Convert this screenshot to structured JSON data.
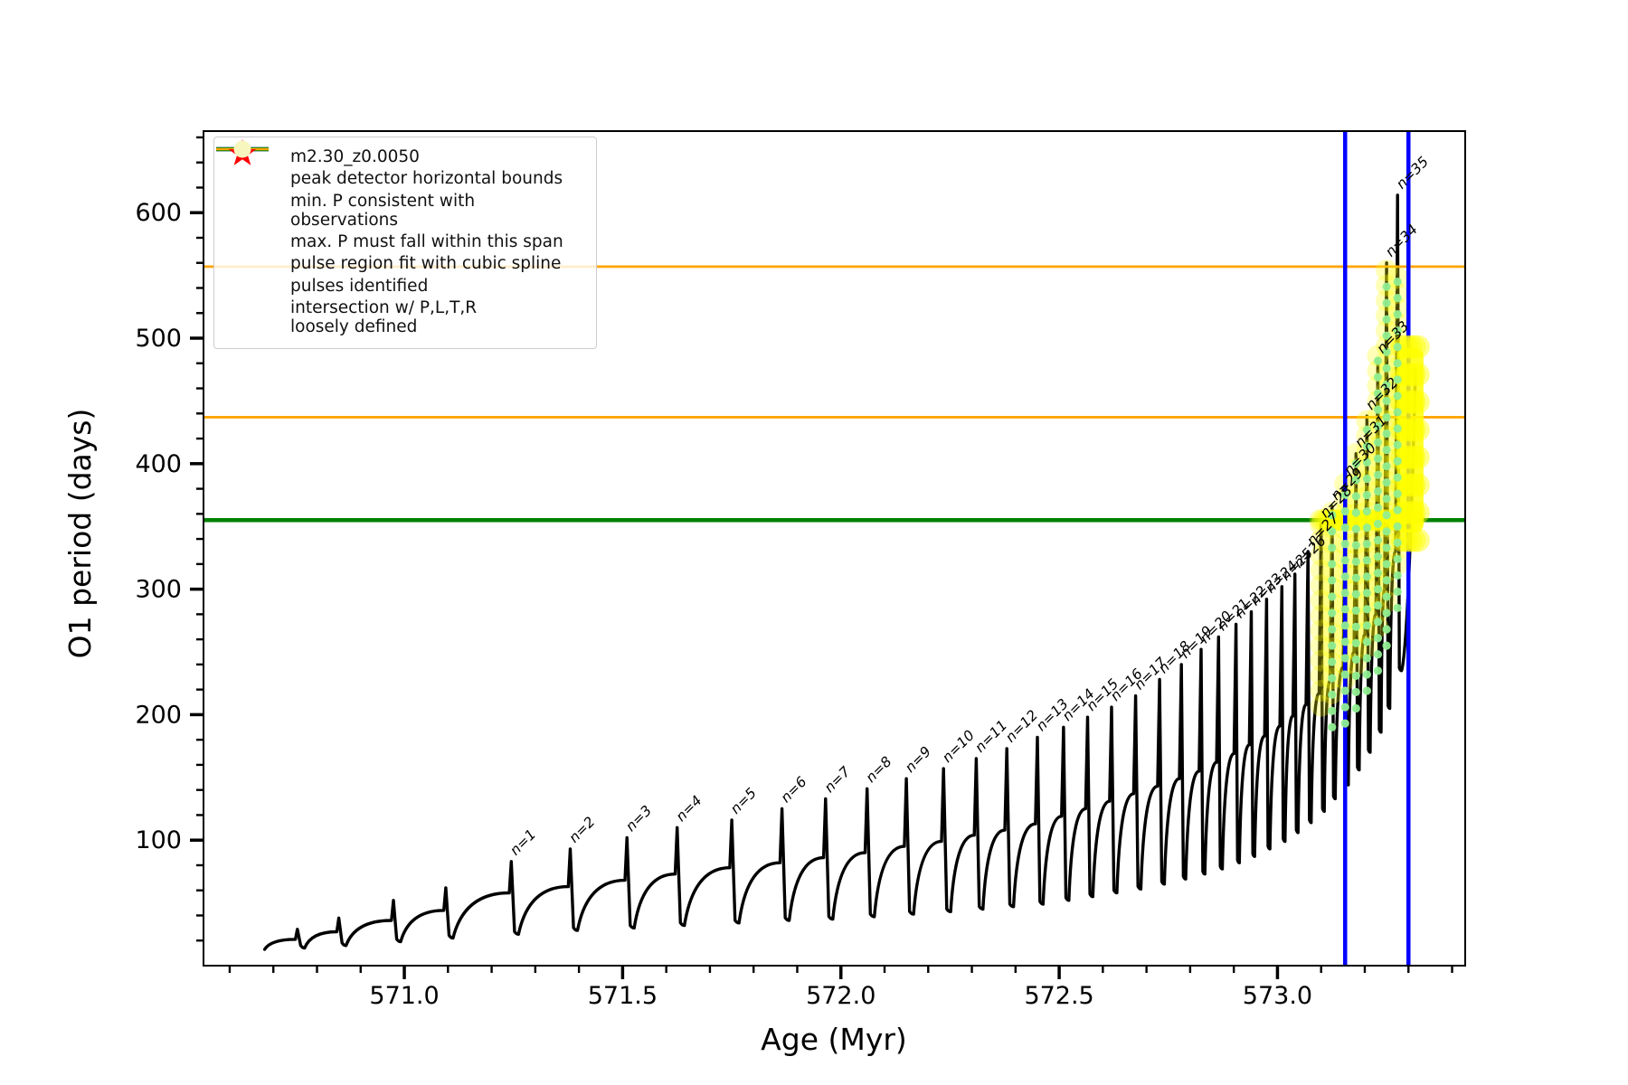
{
  "chart_data": {
    "type": "line",
    "title": "",
    "xlabel": "Age (Myr)",
    "ylabel": "O1 period (days)",
    "xlim": [
      570.54,
      573.43
    ],
    "ylim": [
      0,
      665
    ],
    "x_major_ticks": [
      571.0,
      571.5,
      572.0,
      572.5,
      573.0
    ],
    "x_tick_labels": [
      "571.0",
      "571.5",
      "572.0",
      "572.5",
      "573.0"
    ],
    "x_minor_step": 0.1,
    "y_major_ticks": [
      100,
      200,
      300,
      400,
      500,
      600
    ],
    "y_tick_labels": [
      "100",
      "200",
      "300",
      "400",
      "500",
      "600"
    ],
    "y_minor_step": 20,
    "grid": false,
    "series_name": "m2.30_z0.0050",
    "curve_start": {
      "age": 570.68,
      "period": 13
    },
    "curve_tail": {
      "age": 573.316,
      "period": 475
    },
    "pulses": [
      {
        "label": null,
        "age": 570.755,
        "peak": 29,
        "shoulder": 21,
        "min_after": 14
      },
      {
        "label": null,
        "age": 570.85,
        "peak": 38,
        "shoulder": 27,
        "min_after": 16
      },
      {
        "label": null,
        "age": 570.975,
        "peak": 52,
        "shoulder": 36,
        "min_after": 19
      },
      {
        "label": null,
        "age": 571.095,
        "peak": 62,
        "shoulder": 44,
        "min_after": 22
      },
      {
        "label": "n=1",
        "age": 571.245,
        "peak": 83,
        "shoulder": 58,
        "min_after": 25
      },
      {
        "label": "n=2",
        "age": 571.38,
        "peak": 93,
        "shoulder": 63,
        "min_after": 28
      },
      {
        "label": "n=3",
        "age": 571.51,
        "peak": 102,
        "shoulder": 68,
        "min_after": 30
      },
      {
        "label": "n=4",
        "age": 571.625,
        "peak": 110,
        "shoulder": 73,
        "min_after": 32
      },
      {
        "label": "n=5",
        "age": 571.75,
        "peak": 116,
        "shoulder": 78,
        "min_after": 34
      },
      {
        "label": "n=6",
        "age": 571.865,
        "peak": 125,
        "shoulder": 82,
        "min_after": 36
      },
      {
        "label": "n=7",
        "age": 571.965,
        "peak": 133,
        "shoulder": 86,
        "min_after": 37
      },
      {
        "label": "n=8",
        "age": 572.06,
        "peak": 141,
        "shoulder": 90,
        "min_after": 39
      },
      {
        "label": "n=9",
        "age": 572.15,
        "peak": 149,
        "shoulder": 95,
        "min_after": 41
      },
      {
        "label": "n=10",
        "age": 572.235,
        "peak": 157,
        "shoulder": 99,
        "min_after": 43
      },
      {
        "label": "n=11",
        "age": 572.31,
        "peak": 165,
        "shoulder": 104,
        "min_after": 45
      },
      {
        "label": "n=12",
        "age": 572.38,
        "peak": 173,
        "shoulder": 108,
        "min_after": 47
      },
      {
        "label": "n=13",
        "age": 572.45,
        "peak": 182,
        "shoulder": 113,
        "min_after": 49
      },
      {
        "label": "n=14",
        "age": 572.51,
        "peak": 190,
        "shoulder": 119,
        "min_after": 52
      },
      {
        "label": "n=15",
        "age": 572.565,
        "peak": 198,
        "shoulder": 125,
        "min_after": 55
      },
      {
        "label": "n=16",
        "age": 572.62,
        "peak": 206,
        "shoulder": 131,
        "min_after": 58
      },
      {
        "label": "n=17",
        "age": 572.675,
        "peak": 215,
        "shoulder": 137,
        "min_after": 61
      },
      {
        "label": "n=18",
        "age": 572.73,
        "peak": 228,
        "shoulder": 143,
        "min_after": 65
      },
      {
        "label": "n=19",
        "age": 572.78,
        "peak": 240,
        "shoulder": 149,
        "min_after": 69
      },
      {
        "label": "n=20",
        "age": 572.825,
        "peak": 252,
        "shoulder": 155,
        "min_after": 73
      },
      {
        "label": "n=21",
        "age": 572.865,
        "peak": 262,
        "shoulder": 162,
        "min_after": 77
      },
      {
        "label": "n=22",
        "age": 572.905,
        "peak": 272,
        "shoulder": 169,
        "min_after": 82
      },
      {
        "label": "n=23",
        "age": 572.94,
        "peak": 282,
        "shoulder": 176,
        "min_after": 87
      },
      {
        "label": "n=24",
        "age": 572.975,
        "peak": 292,
        "shoulder": 183,
        "min_after": 93
      },
      {
        "label": "n=25",
        "age": 573.01,
        "peak": 302,
        "shoulder": 191,
        "min_after": 99
      },
      {
        "label": "n=26",
        "age": 573.04,
        "peak": 312,
        "shoulder": 199,
        "min_after": 106
      },
      {
        "label": "n=27",
        "age": 573.07,
        "peak": 330,
        "shoulder": 208,
        "min_after": 114
      },
      {
        "label": "n=28",
        "age": 573.1,
        "peak": 352,
        "shoulder": 217,
        "min_after": 123
      },
      {
        "label": "n=29",
        "age": 573.125,
        "peak": 366,
        "shoulder": 227,
        "min_after": 133
      },
      {
        "label": "n=30",
        "age": 573.155,
        "peak": 386,
        "shoulder": 238,
        "min_after": 144
      },
      {
        "label": "n=31",
        "age": 573.18,
        "peak": 408,
        "shoulder": 250,
        "min_after": 156
      },
      {
        "label": "n=32",
        "age": 573.205,
        "peak": 438,
        "shoulder": 264,
        "min_after": 170
      },
      {
        "label": "n=33",
        "age": 573.23,
        "peak": 483,
        "shoulder": 280,
        "min_after": 186
      },
      {
        "label": "n=34",
        "age": 573.25,
        "peak": 560,
        "shoulder": 300,
        "min_after": 205
      },
      {
        "label": "n=35",
        "age": 573.275,
        "peak": 614,
        "shoulder": 330,
        "min_after": 235
      }
    ],
    "reference_lines": {
      "peak_detector_bounds_x": [
        573.155,
        573.3
      ],
      "min_P_consistent_y": 355,
      "max_P_span_y": [
        437,
        557
      ]
    },
    "overlays": {
      "yellow_from_label": "n=28",
      "yellow_cap": 558,
      "yellow_step": 12,
      "yellow_row": {
        "period": 355,
        "age_from": 573.098,
        "age_to": 573.316,
        "age_step": 0.0055
      },
      "yellow_patch": {
        "age_from": 573.286,
        "age_to": 573.322,
        "period_from": 345,
        "period_to": 492
      },
      "green_from_label": "n=29",
      "green_cap": 545,
      "green_step": 13
    },
    "legend_position": "upper left"
  },
  "legend": {
    "items": [
      {
        "marker": "line-dot",
        "color": "#000000",
        "label": "m2.30_z0.0050"
      },
      {
        "marker": "thick-line",
        "color": "#0000ff",
        "label": "peak detector horizontal bounds"
      },
      {
        "marker": "thick-line",
        "color": "#008000",
        "label": "min. P consistent with observations"
      },
      {
        "marker": "thin-line",
        "color": "#ffa500",
        "label": "max. P must fall within this span"
      },
      {
        "marker": "dot",
        "color": "#90ee90",
        "label": "pulse region fit with cubic spline"
      },
      {
        "marker": "star",
        "color": "#ff0000",
        "label": "pulses identified"
      },
      {
        "marker": "big-dot",
        "color": "#f6f6be",
        "label": "intersection w/ P,L,T,R\nloosely defined"
      }
    ]
  },
  "colors": {
    "curve": "#000000",
    "blue_bounds": "#0000ff",
    "green_min": "#008000",
    "orange_span": "#ffa500",
    "spline_dot": "#90ee90",
    "pulse_star": "#ff0000",
    "intersection_yellow": "#ffff00",
    "axis": "#000000",
    "background": "#ffffff"
  }
}
